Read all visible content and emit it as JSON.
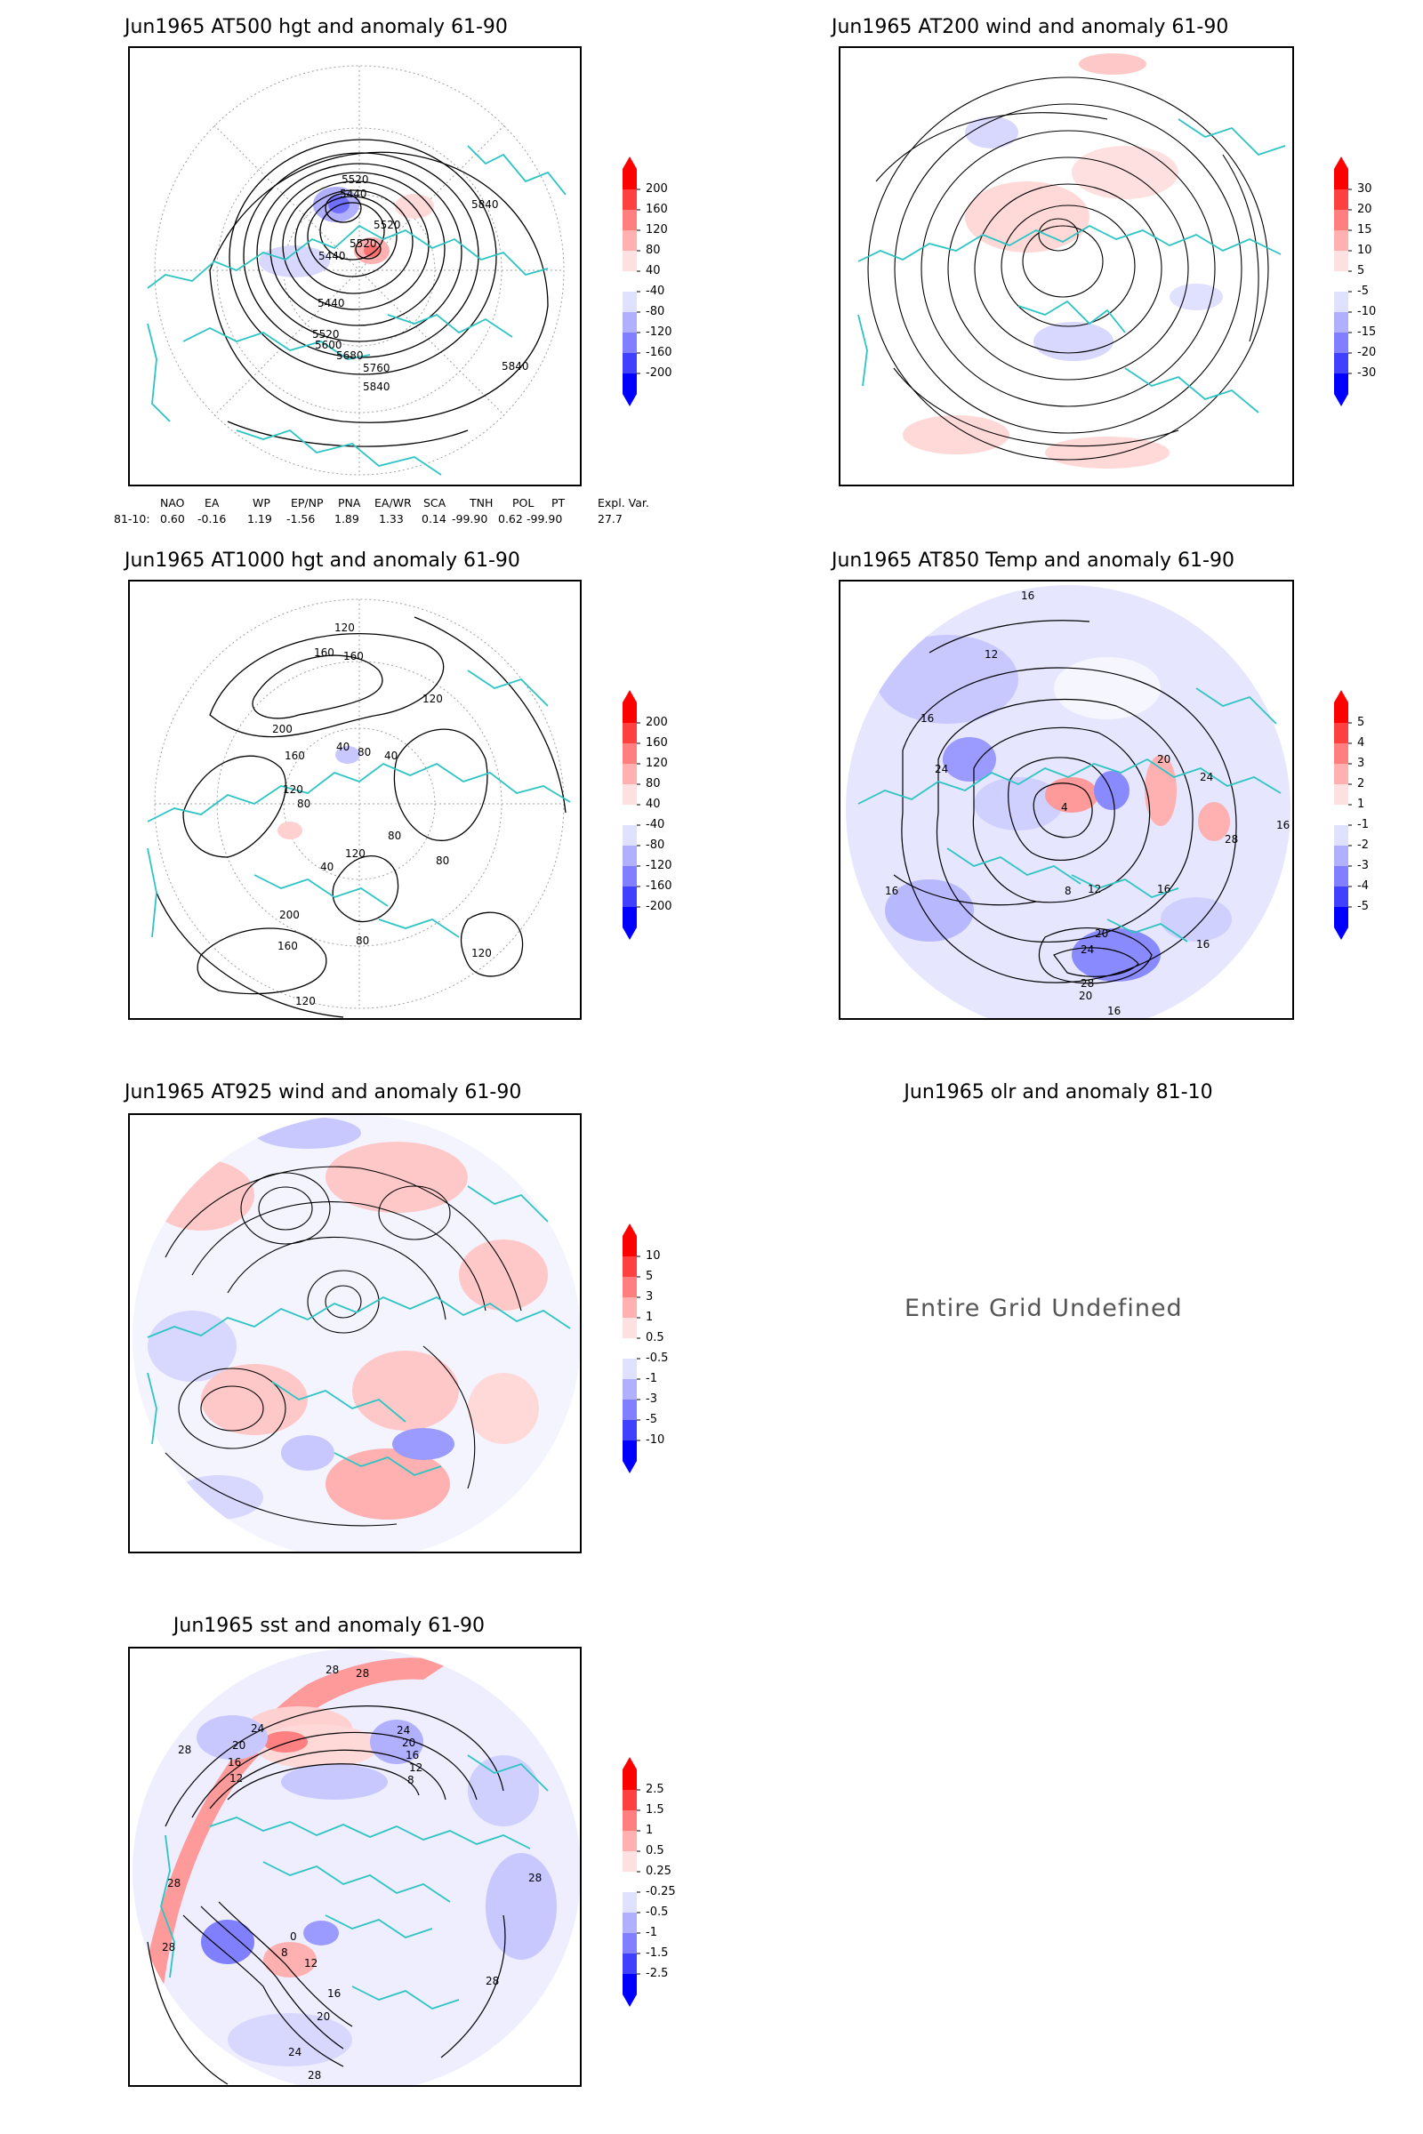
{
  "panels": [
    {
      "id": "at500",
      "title": "Jun1965 AT500 hgt and anomaly 61-90",
      "colorbar": [
        "200",
        "160",
        "120",
        "80",
        "40",
        "-40",
        "-80",
        "-120",
        "-160",
        "-200"
      ],
      "contour_labels": [
        "5520",
        "5440",
        "5520",
        "5520",
        "5440",
        "5440",
        "5520",
        "5600",
        "5680",
        "5760",
        "5840",
        "5840",
        "5840"
      ]
    },
    {
      "id": "at200",
      "title": "Jun1965 AT200 wind and anomaly 61-90",
      "colorbar": [
        "30",
        "20",
        "15",
        "10",
        "5",
        "-5",
        "-10",
        "-15",
        "-20",
        "-30"
      ]
    },
    {
      "id": "at1000",
      "title": "Jun1965 AT1000 hgt and anomaly 61-90",
      "colorbar": [
        "200",
        "160",
        "120",
        "80",
        "40",
        "-40",
        "-80",
        "-120",
        "-160",
        "-200"
      ],
      "contour_labels": [
        "120",
        "160",
        "160",
        "200",
        "120",
        "40",
        "80",
        "160",
        "120",
        "80",
        "40",
        "120",
        "80",
        "40",
        "80",
        "200",
        "160",
        "120",
        "80",
        "120"
      ]
    },
    {
      "id": "at850",
      "title": "Jun1965 AT850 Temp and anomaly 61-90",
      "colorbar": [
        "5",
        "4",
        "3",
        "2",
        "1",
        "-1",
        "-2",
        "-3",
        "-4",
        "-5"
      ],
      "contour_labels": [
        "16",
        "12",
        "16",
        "24",
        "20",
        "24",
        "4",
        "8",
        "12",
        "16",
        "28",
        "16",
        "20",
        "24",
        "28",
        "20",
        "16",
        "16",
        "16"
      ]
    },
    {
      "id": "at925",
      "title": "Jun1965 AT925 wind and anomaly 61-90",
      "colorbar": [
        "10",
        "5",
        "3",
        "1",
        "0.5",
        "-0.5",
        "-1",
        "-3",
        "-5",
        "-10"
      ]
    },
    {
      "id": "olr",
      "title": "Jun1965 olr and anomaly 81-10",
      "message": "Entire Grid Undefined"
    },
    {
      "id": "sst",
      "title": "Jun1965 sst and anomaly 61-90",
      "colorbar": [
        "2.5",
        "1.5",
        "1",
        "0.5",
        "0.25",
        "-0.25",
        "-0.5",
        "-1",
        "-1.5",
        "-2.5"
      ],
      "contour_labels": [
        "28",
        "28",
        "28",
        "24",
        "20",
        "16",
        "12",
        "24",
        "20",
        "16",
        "12",
        "8",
        "28",
        "28",
        "0",
        "8",
        "12",
        "16",
        "20",
        "24",
        "28",
        "28",
        "28"
      ]
    }
  ],
  "indices": {
    "headers": [
      "NAO",
      "EA",
      "WP",
      "EP/NP",
      "PNA",
      "EA/WR",
      "SCA",
      "TNH",
      "POL",
      "PT",
      "Expl. Var."
    ],
    "row_label": "81-10:",
    "values": [
      "0.60",
      "-0.16",
      "1.19",
      "-1.56",
      "1.89",
      "1.33",
      "0.14",
      "-99.90",
      "0.62",
      "-99.90",
      "27.7"
    ]
  },
  "colors": {
    "land_outline": "#2ec4c4",
    "positive_max": "#ff0000",
    "negative_max": "#0000ff",
    "contour": "#000000",
    "grid": "#a0a0a0"
  }
}
